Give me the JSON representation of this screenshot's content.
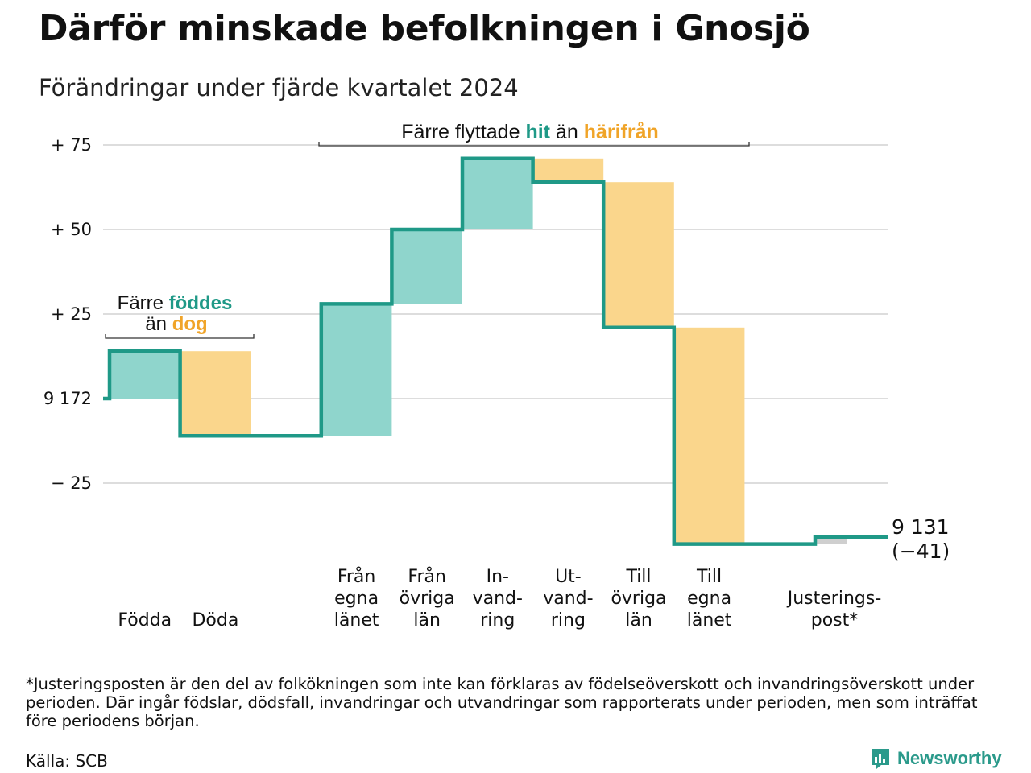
{
  "header": {
    "title": "Därför minskade befolkningen i Gnosjö",
    "subtitle": "Förändringar under fjärde kvartalet 2024"
  },
  "annotations": {
    "births": {
      "line1": "Färre",
      "line1_highlight": "föddes",
      "line2": "än",
      "line2_highlight": "dog"
    },
    "migration": {
      "text": "Färre flyttade",
      "highlight1": "hit",
      "middle": "än",
      "highlight2": "härifrån"
    }
  },
  "end_label": {
    "value": "9 131",
    "change": "(−41)"
  },
  "footer": {
    "footnote": "*Justeringsposten är den del av folkökningen som inte kan förklaras av födelseöverskott och invandringsöverskott under perioden. Där ingår födslar, dödsfall, invandringar och utvandringar som rapporterats under perioden, men som inträffat före periodens början.",
    "source": "Källa: SCB",
    "brand": "Newsworthy"
  },
  "chart_data": {
    "type": "waterfall",
    "start_value": 9172,
    "end_value": 9131,
    "net_change": -41,
    "y_ticks": [
      {
        "value": 75,
        "label": "+ 75"
      },
      {
        "value": 50,
        "label": "+ 50"
      },
      {
        "value": 25,
        "label": "+ 25"
      },
      {
        "value": 0,
        "label": "9 172"
      },
      {
        "value": -25,
        "label": "− 25"
      }
    ],
    "ylim": [
      -40,
      80
    ],
    "grid": true,
    "categories": [
      {
        "label": "Födda",
        "change": 14
      },
      {
        "label": "Döda",
        "change": -25
      },
      {
        "label": "",
        "change": 0
      },
      {
        "label": "Från egna länet",
        "change": 39
      },
      {
        "label": "Från övriga län",
        "change": 22
      },
      {
        "label": "In-vand-ring",
        "change": 21
      },
      {
        "label": "Ut-vand-ring",
        "change": -7
      },
      {
        "label": "Till övriga län",
        "change": -43
      },
      {
        "label": "Till egna länet",
        "change": -64
      },
      {
        "label": "",
        "change": 0
      },
      {
        "label": "Justerings-post*",
        "change": 2
      }
    ],
    "category_label_lines": [
      [
        "Födda"
      ],
      [
        "Döda"
      ],
      [],
      [
        "Från",
        "egna",
        "länet"
      ],
      [
        "Från",
        "övriga",
        "län"
      ],
      [
        "In-",
        "vand-",
        "ring"
      ],
      [
        "Ut-",
        "vand-",
        "ring"
      ],
      [
        "Till",
        "övriga",
        "län"
      ],
      [
        "Till",
        "egna",
        "länet"
      ],
      [],
      [
        "Justerings-",
        "post*"
      ]
    ],
    "colors": {
      "increase": "#8fd5cc",
      "decrease": "#fad68c",
      "adjustment": "#cfcfcf",
      "line": "#1f9987",
      "teal_text": "#1f9987",
      "orange_text": "#f0a428",
      "grid": "#dddddd"
    }
  }
}
